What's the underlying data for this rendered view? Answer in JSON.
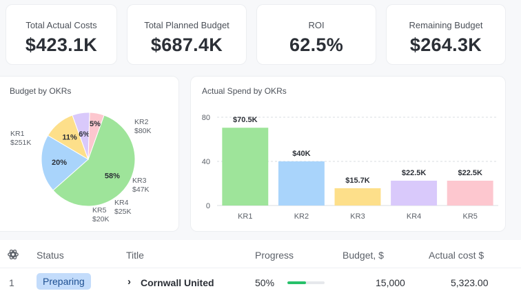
{
  "kpis": [
    {
      "label": "Total Actual Costs",
      "value": "$423.1K"
    },
    {
      "label": "Total Planned Budget",
      "value": "$687.4K"
    },
    {
      "label": "ROI",
      "value": "62.5%"
    },
    {
      "label": "Remaining Budget",
      "value": "$264.3K"
    }
  ],
  "pie_panel": {
    "title": "Budget by OKRs"
  },
  "bar_panel": {
    "title": "Actual Spend by OKRs"
  },
  "chart_data": [
    {
      "type": "pie",
      "title": "Budget by OKRs",
      "slices": [
        {
          "label": "KR1",
          "amount": "$251K",
          "value": 58,
          "percent_label": "58%",
          "color": "#9ee49a"
        },
        {
          "label": "KR2",
          "amount": "$80K",
          "value": 20,
          "percent_label": "20%",
          "color": "#a9d4fb"
        },
        {
          "label": "KR3",
          "amount": "$47K",
          "value": 11,
          "percent_label": "11%",
          "color": "#fddf8a"
        },
        {
          "label": "KR4",
          "amount": "$25K",
          "value": 6,
          "percent_label": "6%",
          "color": "#d9c9fb"
        },
        {
          "label": "KR5",
          "amount": "$20K",
          "value": 5,
          "percent_label": "5%",
          "color": "#fdc7cf"
        }
      ]
    },
    {
      "type": "bar",
      "title": "Actual Spend by OKRs",
      "categories": [
        "KR1",
        "KR2",
        "KR3",
        "KR4",
        "KR5"
      ],
      "values": [
        70.5,
        40,
        15.7,
        22.5,
        22.5
      ],
      "value_labels": [
        "$70.5K",
        "$40K",
        "$15.7K",
        "$22.5K",
        "$22.5K"
      ],
      "colors": [
        "#9ee49a",
        "#a9d4fb",
        "#fddf8a",
        "#d9c9fb",
        "#fdc7cf"
      ],
      "yticks": [
        "80",
        "40",
        "0"
      ],
      "ylim": [
        0,
        80
      ],
      "grid": true
    }
  ],
  "table": {
    "headers": {
      "settings_icon": "gear-icon",
      "status": "Status",
      "title": "Title",
      "progress": "Progress",
      "budget": "Budget, $",
      "actual": "Actual cost $"
    },
    "rows": [
      {
        "index": "1",
        "status": "Preparing",
        "title": "Cornwall United",
        "progress_label": "50%",
        "progress_value": 0.5,
        "budget": "15,000",
        "actual": "5,323.00"
      }
    ]
  }
}
